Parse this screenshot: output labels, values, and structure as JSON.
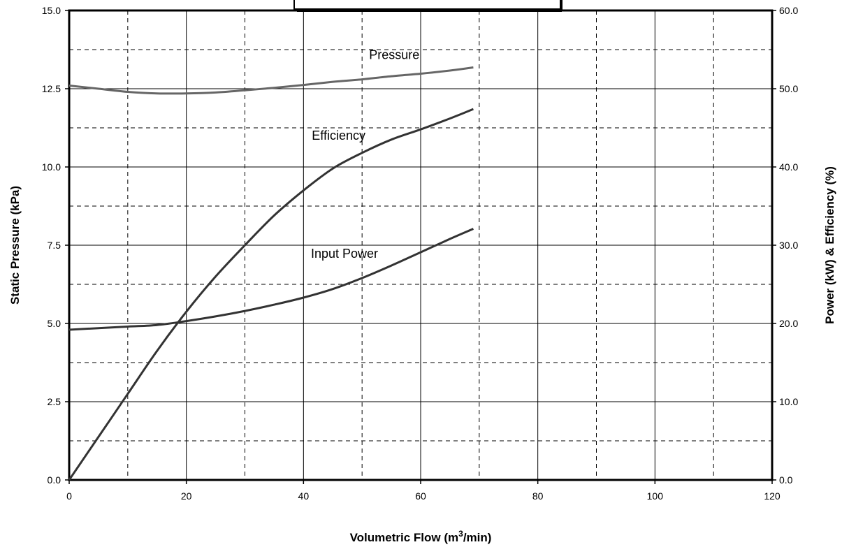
{
  "chart_data": {
    "type": "line",
    "xlabel": "Volumetric Flow (m³/min)",
    "xlabel_base": "Volumetric Flow (m",
    "xlabel_sup": "3",
    "xlabel_tail": "/min)",
    "ylabel_left": "Static Pressure (kPa)",
    "ylabel_right": "Power (kW) & Efficiency (%)",
    "xlim": [
      0,
      120
    ],
    "ylim_left": [
      0,
      15
    ],
    "ylim_right": [
      0,
      60
    ],
    "x_ticks": [
      "0",
      "20",
      "40",
      "60",
      "80",
      "100",
      "120"
    ],
    "y_left_ticks": [
      "0.0",
      "2.5",
      "5.0",
      "7.5",
      "10.0",
      "12.5",
      "15.0"
    ],
    "y_right_ticks": [
      "0.0",
      "10.0",
      "20.0",
      "30.0",
      "40.0",
      "50.0",
      "60.0"
    ],
    "grid": true,
    "line_color": "#333333",
    "pressure_color": "#666666",
    "series": [
      {
        "name": "Pressure",
        "axis": "left",
        "x": [
          0,
          5,
          10,
          15,
          20,
          25,
          30,
          35,
          40,
          45,
          50,
          55,
          60,
          65,
          69
        ],
        "y": [
          12.6,
          12.5,
          12.4,
          12.35,
          12.35,
          12.38,
          12.45,
          12.53,
          12.62,
          12.72,
          12.8,
          12.9,
          12.98,
          13.08,
          13.18
        ]
      },
      {
        "name": "Efficiency",
        "axis": "right",
        "x": [
          0,
          5,
          10,
          15,
          20,
          25,
          30,
          35,
          40,
          45,
          50,
          55,
          60,
          65,
          69
        ],
        "y": [
          0,
          5.5,
          11.0,
          16.5,
          21.5,
          26.0,
          30.0,
          33.8,
          37.0,
          39.8,
          41.8,
          43.5,
          44.8,
          46.2,
          47.4
        ]
      },
      {
        "name": "Input Power",
        "axis": "right",
        "x": [
          0,
          5,
          10,
          15,
          20,
          25,
          30,
          35,
          40,
          45,
          50,
          55,
          60,
          65,
          69
        ],
        "y": [
          19.2,
          19.4,
          19.6,
          19.8,
          20.3,
          20.9,
          21.6,
          22.4,
          23.3,
          24.4,
          25.8,
          27.4,
          29.1,
          30.8,
          32.1
        ]
      }
    ],
    "annotations": [
      {
        "text": "Pressure",
        "x": 55.5,
        "y_axis": "left",
        "y": 13.45
      },
      {
        "text": "Efficiency",
        "x": 46,
        "y_axis": "right",
        "y": 43.5
      },
      {
        "text": "Input Power",
        "x": 47,
        "y_axis": "right",
        "y": 28.4
      }
    ]
  }
}
